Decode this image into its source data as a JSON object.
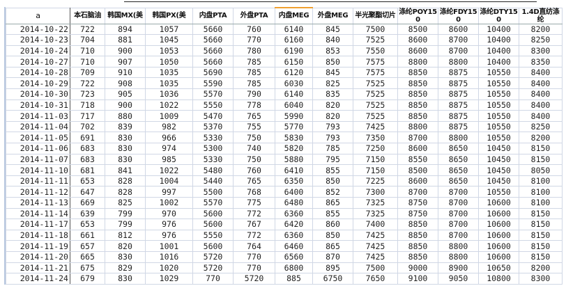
{
  "headers": [
    "a",
    "本石脑油",
    "韩国MX(美",
    "韩国PX(美",
    "内盘PTA",
    "外盘PTA",
    "内盘MEG",
    "外盘MEG",
    "半光聚酯切片",
    "涤纶POY150",
    "涤纶FDY150",
    "涤纶DTY150",
    "1.4D直纺涤纶"
  ],
  "selected_header_index": 6,
  "rows": [
    [
      "2014-10-22",
      "722",
      "894",
      "1057",
      "5660",
      "760",
      "6140",
      "845",
      "7500",
      "8500",
      "8600",
      "10400",
      "8200"
    ],
    [
      "2014-10-23",
      "704",
      "881",
      "1045",
      "5660",
      "770",
      "6160",
      "840",
      "7525",
      "8600",
      "8700",
      "10400",
      "8250"
    ],
    [
      "2014-10-24",
      "710",
      "900",
      "1053",
      "5660",
      "780",
      "6190",
      "853",
      "7550",
      "8600",
      "8700",
      "10400",
      "8300"
    ],
    [
      "2014-10-27",
      "710",
      "907",
      "1050",
      "5660",
      "785",
      "6150",
      "850",
      "7575",
      "8800",
      "8800",
      "10400",
      "8350"
    ],
    [
      "2014-10-28",
      "709",
      "910",
      "1035",
      "5690",
      "785",
      "6120",
      "845",
      "7575",
      "8850",
      "8875",
      "10550",
      "8400"
    ],
    [
      "2014-10-29",
      "722",
      "908",
      "1035",
      "5590",
      "785",
      "6030",
      "825",
      "7525",
      "8850",
      "8875",
      "10550",
      "8400"
    ],
    [
      "2014-10-30",
      "723",
      "905",
      "1036",
      "5570",
      "790",
      "6140",
      "835",
      "7525",
      "8850",
      "8875",
      "10550",
      "8400"
    ],
    [
      "2014-10-31",
      "718",
      "900",
      "1022",
      "5550",
      "778",
      "6040",
      "820",
      "7525",
      "8850",
      "8875",
      "10550",
      "8400"
    ],
    [
      "2014-11-03",
      "717",
      "880",
      "1009",
      "5470",
      "765",
      "5990",
      "820",
      "7525",
      "8850",
      "8875",
      "10550",
      "8400"
    ],
    [
      "2014-11-04",
      "702",
      "839",
      "982",
      "5370",
      "755",
      "5770",
      "793",
      "7425",
      "8800",
      "8875",
      "10550",
      "8250"
    ],
    [
      "2014-11-05",
      "691",
      "830",
      "966",
      "5330",
      "750",
      "5830",
      "793",
      "7350",
      "8700",
      "8800",
      "10550",
      "8200"
    ],
    [
      "2014-11-06",
      "683",
      "830",
      "974",
      "5300",
      "740",
      "5820",
      "785",
      "7250",
      "8600",
      "8650",
      "10450",
      "8150"
    ],
    [
      "2014-11-07",
      "683",
      "830",
      "985",
      "5330",
      "750",
      "5880",
      "795",
      "7150",
      "8550",
      "8650",
      "10450",
      "8150"
    ],
    [
      "2014-11-10",
      "681",
      "841",
      "1022",
      "5480",
      "760",
      "6410",
      "855",
      "7150",
      "8500",
      "8650",
      "10450",
      "8050"
    ],
    [
      "2014-11-11",
      "653",
      "828",
      "1004",
      "5440",
      "765",
      "6350",
      "850",
      "7225",
      "8600",
      "8650",
      "10450",
      "8100"
    ],
    [
      "2014-11-12",
      "647",
      "828",
      "997",
      "5500",
      "768",
      "6400",
      "852",
      "7300",
      "8700",
      "8700",
      "10550",
      "8100"
    ],
    [
      "2014-11-13",
      "669",
      "825",
      "1002",
      "5570",
      "775",
      "6480",
      "865",
      "7325",
      "8750",
      "8700",
      "10600",
      "8100"
    ],
    [
      "2014-11-14",
      "639",
      "799",
      "970",
      "5600",
      "772",
      "6360",
      "855",
      "7325",
      "8750",
      "8700",
      "10600",
      "8150"
    ],
    [
      "2014-11-17",
      "653",
      "799",
      "976",
      "5600",
      "767",
      "6420",
      "860",
      "7400",
      "8850",
      "8700",
      "10600",
      "8150"
    ],
    [
      "2014-11-18",
      "661",
      "812",
      "976",
      "5550",
      "772",
      "6360",
      "850",
      "7425",
      "8850",
      "8700",
      "10600",
      "8150"
    ],
    [
      "2014-11-19",
      "657",
      "820",
      "1001",
      "5600",
      "764",
      "6460",
      "865",
      "7425",
      "8850",
      "8800",
      "10600",
      "8150"
    ],
    [
      "2014-11-20",
      "665",
      "830",
      "1016",
      "5720",
      "770",
      "6560",
      "870",
      "7425",
      "8850",
      "8800",
      "10600",
      "8150"
    ],
    [
      "2014-11-21",
      "675",
      "829",
      "1020",
      "5720",
      "770",
      "6800",
      "895",
      "7500",
      "9000",
      "8900",
      "10650",
      "8200"
    ],
    [
      "2014-11-24",
      "679",
      "830",
      "1029",
      "770",
      "5720",
      "885",
      "6750",
      "7650",
      "9100",
      "9050",
      "10800",
      "8300"
    ]
  ]
}
